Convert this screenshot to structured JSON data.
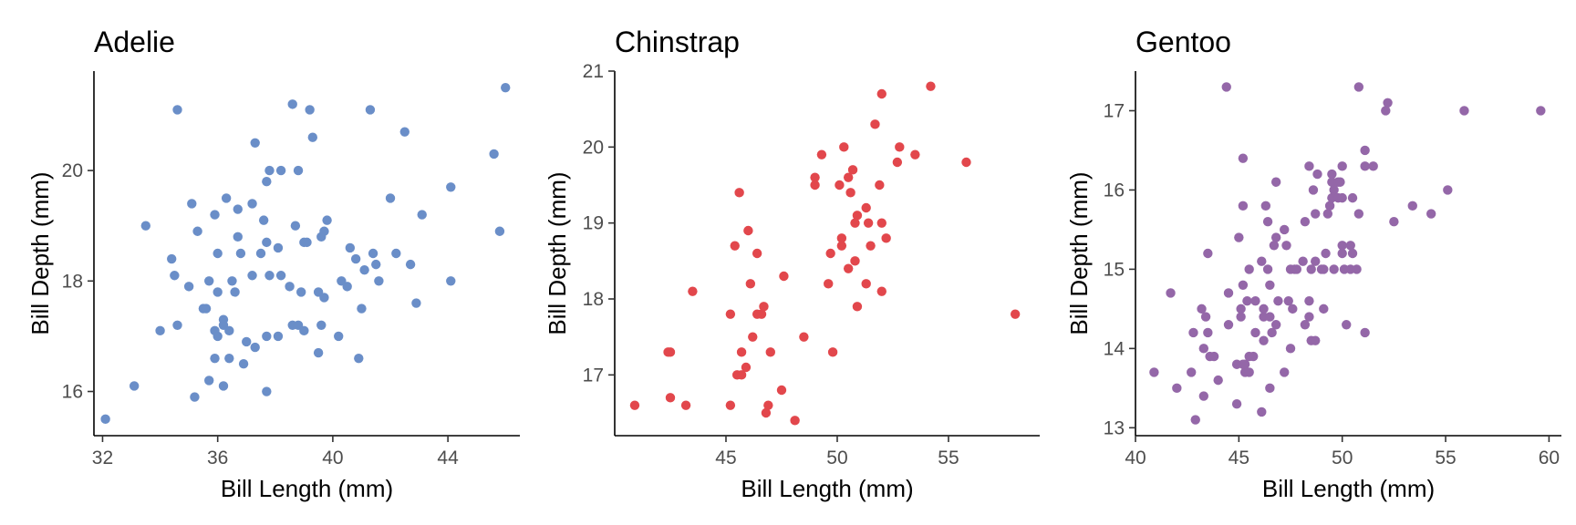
{
  "chart_data": [
    {
      "type": "scatter",
      "title": "Adelie",
      "xlabel": "Bill Length (mm)",
      "ylabel": "Bill Depth (mm)",
      "xlim": [
        31.7,
        46.5
      ],
      "ylim": [
        15.2,
        21.8
      ],
      "xticks": [
        32,
        36,
        40,
        44
      ],
      "yticks": [
        16,
        18,
        20
      ],
      "color": "#6a8ec8",
      "grid": false,
      "points": [
        [
          32.1,
          15.5
        ],
        [
          33.1,
          16.1
        ],
        [
          33.5,
          19.0
        ],
        [
          34.0,
          17.1
        ],
        [
          34.4,
          18.4
        ],
        [
          34.5,
          18.1
        ],
        [
          34.6,
          21.1
        ],
        [
          34.6,
          17.2
        ],
        [
          35.0,
          17.9
        ],
        [
          35.1,
          19.4
        ],
        [
          35.2,
          15.9
        ],
        [
          35.3,
          18.9
        ],
        [
          35.5,
          17.5
        ],
        [
          35.6,
          17.5
        ],
        [
          35.7,
          16.2
        ],
        [
          35.7,
          18.0
        ],
        [
          35.9,
          16.6
        ],
        [
          35.9,
          17.1
        ],
        [
          35.9,
          19.2
        ],
        [
          36.0,
          17.8
        ],
        [
          36.0,
          17.0
        ],
        [
          36.0,
          18.5
        ],
        [
          36.2,
          16.1
        ],
        [
          36.2,
          17.2
        ],
        [
          36.2,
          17.3
        ],
        [
          36.3,
          19.5
        ],
        [
          36.4,
          16.6
        ],
        [
          36.4,
          17.1
        ],
        [
          36.5,
          18.0
        ],
        [
          36.6,
          17.8
        ],
        [
          36.7,
          18.8
        ],
        [
          36.7,
          19.3
        ],
        [
          36.8,
          18.5
        ],
        [
          36.9,
          16.5
        ],
        [
          37.0,
          16.9
        ],
        [
          37.2,
          18.1
        ],
        [
          37.2,
          19.4
        ],
        [
          37.3,
          16.8
        ],
        [
          37.3,
          20.5
        ],
        [
          37.5,
          18.5
        ],
        [
          37.6,
          19.1
        ],
        [
          37.7,
          16.0
        ],
        [
          37.7,
          17.0
        ],
        [
          37.7,
          18.7
        ],
        [
          37.7,
          19.8
        ],
        [
          37.8,
          18.1
        ],
        [
          37.8,
          20.0
        ],
        [
          38.1,
          17.0
        ],
        [
          38.1,
          18.6
        ],
        [
          38.2,
          18.1
        ],
        [
          38.2,
          20.0
        ],
        [
          38.5,
          17.9
        ],
        [
          38.6,
          17.2
        ],
        [
          38.6,
          21.2
        ],
        [
          38.7,
          19.0
        ],
        [
          38.8,
          17.2
        ],
        [
          38.8,
          20.0
        ],
        [
          38.9,
          17.8
        ],
        [
          39.0,
          17.1
        ],
        [
          39.0,
          18.7
        ],
        [
          39.1,
          18.7
        ],
        [
          39.2,
          21.1
        ],
        [
          39.3,
          20.6
        ],
        [
          39.5,
          16.7
        ],
        [
          39.5,
          17.8
        ],
        [
          39.6,
          17.2
        ],
        [
          39.6,
          18.8
        ],
        [
          39.7,
          17.7
        ],
        [
          39.7,
          18.9
        ],
        [
          39.8,
          19.1
        ],
        [
          40.2,
          17.0
        ],
        [
          40.3,
          18.0
        ],
        [
          40.5,
          17.9
        ],
        [
          40.6,
          18.6
        ],
        [
          40.8,
          18.4
        ],
        [
          40.9,
          16.6
        ],
        [
          41.0,
          17.5
        ],
        [
          41.1,
          18.2
        ],
        [
          41.3,
          21.1
        ],
        [
          41.4,
          18.5
        ],
        [
          41.5,
          18.3
        ],
        [
          41.6,
          18.0
        ],
        [
          42.0,
          19.5
        ],
        [
          42.2,
          18.5
        ],
        [
          42.5,
          20.7
        ],
        [
          42.7,
          18.3
        ],
        [
          42.9,
          17.6
        ],
        [
          43.1,
          19.2
        ],
        [
          44.1,
          19.7
        ],
        [
          44.1,
          18.0
        ],
        [
          45.6,
          20.3
        ],
        [
          45.8,
          18.9
        ],
        [
          46.0,
          21.5
        ]
      ]
    },
    {
      "type": "scatter",
      "title": "Chinstrap",
      "xlabel": "Bill Length (mm)",
      "ylabel": "Bill Depth (mm)",
      "xlim": [
        40.0,
        59.1
      ],
      "ylim": [
        16.2,
        21.0
      ],
      "xticks": [
        45,
        50,
        55
      ],
      "yticks": [
        17,
        18,
        19,
        20,
        21
      ],
      "color": "#e2474c",
      "grid": false,
      "points": [
        [
          40.9,
          16.6
        ],
        [
          42.4,
          17.3
        ],
        [
          42.5,
          16.7
        ],
        [
          42.5,
          17.3
        ],
        [
          43.2,
          16.6
        ],
        [
          43.5,
          18.1
        ],
        [
          45.2,
          16.6
        ],
        [
          45.2,
          17.8
        ],
        [
          45.4,
          18.7
        ],
        [
          45.5,
          17.0
        ],
        [
          45.6,
          19.4
        ],
        [
          45.7,
          17.0
        ],
        [
          45.7,
          17.3
        ],
        [
          45.9,
          17.1
        ],
        [
          46.0,
          18.9
        ],
        [
          46.1,
          18.2
        ],
        [
          46.2,
          17.5
        ],
        [
          46.4,
          17.8
        ],
        [
          46.4,
          18.6
        ],
        [
          46.6,
          17.8
        ],
        [
          46.7,
          17.9
        ],
        [
          46.8,
          16.5
        ],
        [
          46.9,
          16.6
        ],
        [
          47.0,
          17.3
        ],
        [
          47.5,
          16.8
        ],
        [
          47.6,
          18.3
        ],
        [
          48.1,
          16.4
        ],
        [
          48.5,
          17.5
        ],
        [
          49.0,
          19.5
        ],
        [
          49.0,
          19.6
        ],
        [
          49.3,
          19.9
        ],
        [
          49.6,
          18.2
        ],
        [
          49.7,
          18.6
        ],
        [
          49.8,
          17.3
        ],
        [
          50.1,
          19.5
        ],
        [
          50.2,
          18.8
        ],
        [
          50.2,
          18.7
        ],
        [
          50.3,
          20.0
        ],
        [
          50.5,
          18.4
        ],
        [
          50.5,
          19.6
        ],
        [
          50.6,
          19.4
        ],
        [
          50.7,
          19.7
        ],
        [
          50.8,
          18.5
        ],
        [
          50.8,
          19.0
        ],
        [
          50.9,
          17.9
        ],
        [
          50.9,
          19.1
        ],
        [
          51.3,
          18.2
        ],
        [
          51.3,
          19.2
        ],
        [
          51.4,
          19.0
        ],
        [
          51.5,
          18.7
        ],
        [
          51.7,
          20.3
        ],
        [
          51.9,
          19.5
        ],
        [
          52.0,
          18.1
        ],
        [
          52.0,
          19.0
        ],
        [
          52.0,
          20.7
        ],
        [
          52.2,
          18.8
        ],
        [
          52.7,
          19.8
        ],
        [
          52.8,
          20.0
        ],
        [
          53.5,
          19.9
        ],
        [
          54.2,
          20.8
        ],
        [
          55.8,
          19.8
        ],
        [
          58.0,
          17.8
        ]
      ]
    },
    {
      "type": "scatter",
      "title": "Gentoo",
      "xlabel": "Bill Length (mm)",
      "ylabel": "Bill Depth (mm)",
      "xlim": [
        40.0,
        60.6
      ],
      "ylim": [
        12.9,
        17.5
      ],
      "xticks": [
        40,
        45,
        50,
        55,
        60
      ],
      "yticks": [
        13,
        14,
        15,
        16,
        17
      ],
      "color": "#9467a8",
      "grid": false,
      "points": [
        [
          40.9,
          13.7
        ],
        [
          41.7,
          14.7
        ],
        [
          42.0,
          13.5
        ],
        [
          42.7,
          13.7
        ],
        [
          42.8,
          14.2
        ],
        [
          42.9,
          13.1
        ],
        [
          43.2,
          14.5
        ],
        [
          43.3,
          13.4
        ],
        [
          43.3,
          14.0
        ],
        [
          43.4,
          14.4
        ],
        [
          43.5,
          14.2
        ],
        [
          43.5,
          15.2
        ],
        [
          43.6,
          13.9
        ],
        [
          43.8,
          13.9
        ],
        [
          44.0,
          13.6
        ],
        [
          44.4,
          17.3
        ],
        [
          44.5,
          14.3
        ],
        [
          44.5,
          14.7
        ],
        [
          44.9,
          13.3
        ],
        [
          44.9,
          13.8
        ],
        [
          45.0,
          15.4
        ],
        [
          45.1,
          14.4
        ],
        [
          45.1,
          14.5
        ],
        [
          45.2,
          13.8
        ],
        [
          45.2,
          14.8
        ],
        [
          45.2,
          15.8
        ],
        [
          45.2,
          16.4
        ],
        [
          45.3,
          13.7
        ],
        [
          45.3,
          13.8
        ],
        [
          45.4,
          14.6
        ],
        [
          45.5,
          13.7
        ],
        [
          45.5,
          13.9
        ],
        [
          45.5,
          15.0
        ],
        [
          45.7,
          13.9
        ],
        [
          45.8,
          14.2
        ],
        [
          45.8,
          14.6
        ],
        [
          46.1,
          13.2
        ],
        [
          46.1,
          15.1
        ],
        [
          46.2,
          14.1
        ],
        [
          46.2,
          14.4
        ],
        [
          46.2,
          14.5
        ],
        [
          46.3,
          15.8
        ],
        [
          46.4,
          15.0
        ],
        [
          46.4,
          15.6
        ],
        [
          46.5,
          13.5
        ],
        [
          46.5,
          14.4
        ],
        [
          46.5,
          14.8
        ],
        [
          46.6,
          14.2
        ],
        [
          46.7,
          15.3
        ],
        [
          46.8,
          14.3
        ],
        [
          46.8,
          15.4
        ],
        [
          46.8,
          16.1
        ],
        [
          46.9,
          14.6
        ],
        [
          47.2,
          13.7
        ],
        [
          47.2,
          15.5
        ],
        [
          47.3,
          15.3
        ],
        [
          47.4,
          14.6
        ],
        [
          47.5,
          14.0
        ],
        [
          47.5,
          15.0
        ],
        [
          47.6,
          14.5
        ],
        [
          47.7,
          15.0
        ],
        [
          47.8,
          15.0
        ],
        [
          48.1,
          15.1
        ],
        [
          48.2,
          14.3
        ],
        [
          48.2,
          15.6
        ],
        [
          48.4,
          14.4
        ],
        [
          48.4,
          14.6
        ],
        [
          48.4,
          16.3
        ],
        [
          48.5,
          14.1
        ],
        [
          48.5,
          15.0
        ],
        [
          48.6,
          16.0
        ],
        [
          48.7,
          14.1
        ],
        [
          48.7,
          15.1
        ],
        [
          48.7,
          15.7
        ],
        [
          48.8,
          16.2
        ],
        [
          49.0,
          15.0
        ],
        [
          49.1,
          14.5
        ],
        [
          49.1,
          15.0
        ],
        [
          49.2,
          15.2
        ],
        [
          49.3,
          15.7
        ],
        [
          49.4,
          15.8
        ],
        [
          49.5,
          15.9
        ],
        [
          49.5,
          16.1
        ],
        [
          49.5,
          16.2
        ],
        [
          49.6,
          15.0
        ],
        [
          49.6,
          16.0
        ],
        [
          49.8,
          15.9
        ],
        [
          49.8,
          16.1
        ],
        [
          49.9,
          16.1
        ],
        [
          50.0,
          15.2
        ],
        [
          50.0,
          15.3
        ],
        [
          50.0,
          15.9
        ],
        [
          50.0,
          16.3
        ],
        [
          50.1,
          15.0
        ],
        [
          50.2,
          14.3
        ],
        [
          50.4,
          15.0
        ],
        [
          50.4,
          15.3
        ],
        [
          50.5,
          15.2
        ],
        [
          50.5,
          15.9
        ],
        [
          50.7,
          15.0
        ],
        [
          50.8,
          15.7
        ],
        [
          50.8,
          17.3
        ],
        [
          51.1,
          14.2
        ],
        [
          51.1,
          16.3
        ],
        [
          51.1,
          16.5
        ],
        [
          51.5,
          16.3
        ],
        [
          52.1,
          17.0
        ],
        [
          52.2,
          17.1
        ],
        [
          52.5,
          15.6
        ],
        [
          53.4,
          15.8
        ],
        [
          54.3,
          15.7
        ],
        [
          55.1,
          16.0
        ],
        [
          55.9,
          17.0
        ],
        [
          59.6,
          17.0
        ]
      ]
    }
  ]
}
